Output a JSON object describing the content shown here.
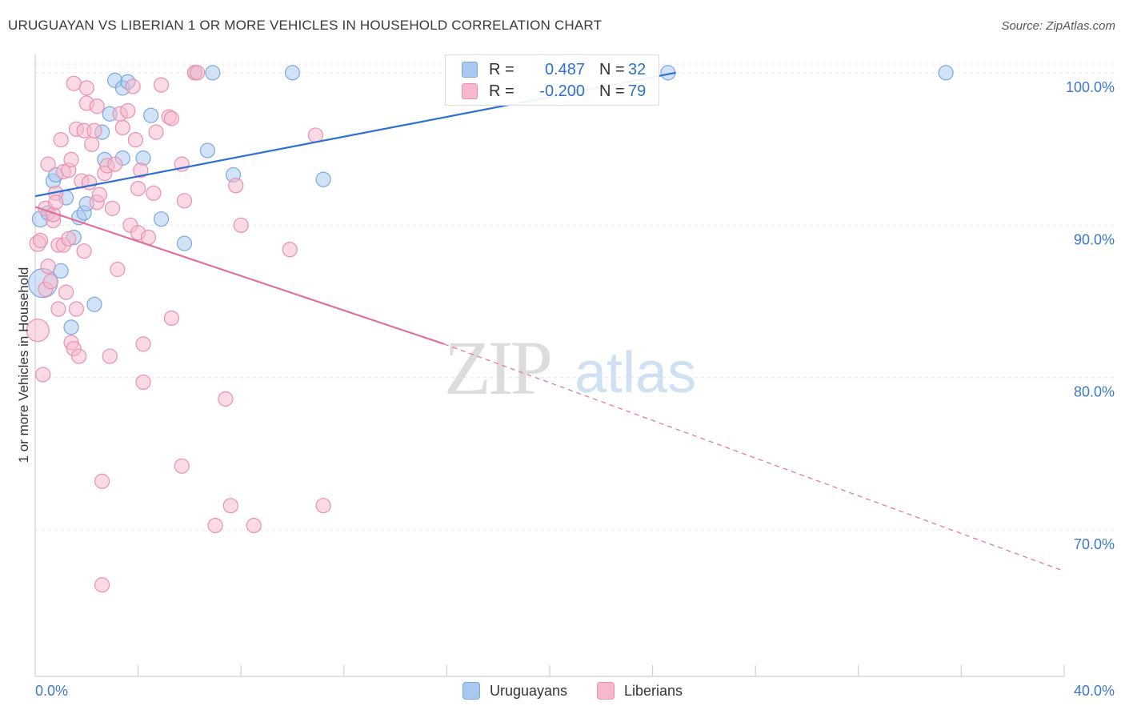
{
  "header": {
    "title": "URUGUAYAN VS LIBERIAN 1 OR MORE VEHICLES IN HOUSEHOLD CORRELATION CHART",
    "source": "Source: ZipAtlas.com"
  },
  "watermark": {
    "zip": "ZIP",
    "atlas": "atlas"
  },
  "legend": {
    "rows": [
      {
        "r_label": "R =",
        "r_value": "0.487",
        "n_label": "N =",
        "n_value": "32",
        "color": "#a8c8f0",
        "stroke": "#7ba6e0"
      },
      {
        "r_label": "R =",
        "r_value": "-0.200",
        "n_label": "N =",
        "n_value": "79",
        "color": "#f6b8cc",
        "stroke": "#e890ad"
      }
    ]
  },
  "bottom_legend": {
    "items": [
      {
        "label": "Uruguayans",
        "color": "#a8c8f0",
        "stroke": "#7ba6e0"
      },
      {
        "label": "Liberians",
        "color": "#f6b8cc",
        "stroke": "#e890ad"
      }
    ]
  },
  "chart_data": {
    "type": "scatter",
    "title": "URUGUAYAN VS LIBERIAN 1 OR MORE VEHICLES IN HOUSEHOLD CORRELATION CHART",
    "xlabel": "",
    "ylabel": "1 or more Vehicles in Household",
    "xlim": [
      0,
      40
    ],
    "ylim": [
      60.4,
      101.2
    ],
    "x_tick_labels": [
      "0.0%",
      "40.0%"
    ],
    "y_ticks": [
      {
        "value": 100,
        "label": "100.0%"
      },
      {
        "value": 90,
        "label": "90.0%"
      },
      {
        "value": 80,
        "label": "80.0%"
      },
      {
        "value": 70,
        "label": "70.0%"
      }
    ],
    "grid": true,
    "series": [
      {
        "name": "Uruguayans",
        "color": "#a8c8f0",
        "stroke": "#7ba6e0",
        "line_color": "#2f6fd0",
        "trend": {
          "x0": 0.0,
          "y0": 91.9,
          "x1": 24.9,
          "y1": 100.0,
          "dashed_to": null
        },
        "points": [
          [
            0.3,
            86.2,
            18
          ],
          [
            0.2,
            90.4,
            10
          ],
          [
            0.5,
            90.8,
            9
          ],
          [
            0.7,
            92.9,
            9
          ],
          [
            0.8,
            93.3,
            9
          ],
          [
            1.0,
            87.0,
            9
          ],
          [
            1.2,
            91.8,
            9
          ],
          [
            1.5,
            89.2,
            9
          ],
          [
            1.7,
            90.5,
            9
          ],
          [
            1.9,
            90.8,
            9
          ],
          [
            2.0,
            91.4,
            9
          ],
          [
            2.3,
            84.8,
            9
          ],
          [
            1.4,
            83.3,
            9
          ],
          [
            2.6,
            96.1,
            9
          ],
          [
            2.7,
            94.3,
            9
          ],
          [
            2.9,
            97.3,
            9
          ],
          [
            3.1,
            99.5,
            9
          ],
          [
            3.4,
            94.4,
            9
          ],
          [
            3.4,
            99.0,
            9
          ],
          [
            3.6,
            99.4,
            9
          ],
          [
            4.2,
            94.4,
            9
          ],
          [
            4.5,
            97.2,
            9
          ],
          [
            4.9,
            90.4,
            9
          ],
          [
            5.8,
            88.8,
            9
          ],
          [
            6.2,
            100.0,
            9
          ],
          [
            6.7,
            94.9,
            9
          ],
          [
            6.9,
            100.0,
            9
          ],
          [
            7.7,
            93.3,
            9
          ],
          [
            10.0,
            100.0,
            9
          ],
          [
            11.2,
            93.0,
            9
          ],
          [
            24.6,
            100.0,
            9
          ],
          [
            35.4,
            100.0,
            9
          ]
        ]
      },
      {
        "name": "Liberians",
        "color": "#f6b8cc",
        "stroke": "#e890ad",
        "line_color": "#e07098",
        "trend": {
          "x0": 0.0,
          "y0": 91.2,
          "x1": 15.9,
          "y1": 82.2,
          "dashed_to": {
            "x": 40.0,
            "y": 67.3
          }
        },
        "points": [
          [
            0.1,
            83.1,
            14
          ],
          [
            0.1,
            88.8,
            10
          ],
          [
            0.2,
            89.0,
            9
          ],
          [
            0.3,
            80.2,
            9
          ],
          [
            0.4,
            85.8,
            9
          ],
          [
            0.4,
            91.1,
            9
          ],
          [
            0.5,
            94.0,
            9
          ],
          [
            0.5,
            87.3,
            9
          ],
          [
            0.6,
            86.3,
            9
          ],
          [
            0.7,
            90.3,
            9
          ],
          [
            0.7,
            90.7,
            9
          ],
          [
            0.8,
            92.1,
            9
          ],
          [
            0.8,
            91.5,
            9
          ],
          [
            0.9,
            84.5,
            9
          ],
          [
            0.9,
            88.7,
            9
          ],
          [
            1.0,
            95.6,
            9
          ],
          [
            1.1,
            93.5,
            9
          ],
          [
            1.1,
            88.7,
            9
          ],
          [
            1.2,
            85.6,
            9
          ],
          [
            1.3,
            89.1,
            9
          ],
          [
            1.3,
            93.6,
            9
          ],
          [
            1.4,
            82.3,
            9
          ],
          [
            1.4,
            94.3,
            9
          ],
          [
            1.5,
            81.9,
            9
          ],
          [
            1.5,
            99.3,
            9
          ],
          [
            1.6,
            84.5,
            9
          ],
          [
            1.6,
            96.3,
            9
          ],
          [
            1.7,
            81.4,
            9
          ],
          [
            1.8,
            92.9,
            9
          ],
          [
            1.9,
            88.3,
            9
          ],
          [
            1.9,
            96.2,
            9
          ],
          [
            2.0,
            99.0,
            9
          ],
          [
            2.0,
            98.0,
            9
          ],
          [
            2.1,
            92.8,
            9
          ],
          [
            2.2,
            95.3,
            9
          ],
          [
            2.3,
            96.2,
            9
          ],
          [
            2.4,
            91.5,
            9
          ],
          [
            2.4,
            97.8,
            9
          ],
          [
            2.5,
            92.0,
            9
          ],
          [
            2.6,
            73.2,
            9
          ],
          [
            2.6,
            66.4,
            9
          ],
          [
            2.7,
            93.4,
            9
          ],
          [
            2.8,
            93.9,
            9
          ],
          [
            2.9,
            81.4,
            9
          ],
          [
            3.0,
            91.1,
            9
          ],
          [
            3.1,
            94.0,
            9
          ],
          [
            3.2,
            87.1,
            9
          ],
          [
            3.3,
            97.3,
            9
          ],
          [
            3.4,
            96.4,
            9
          ],
          [
            3.6,
            97.5,
            9
          ],
          [
            3.7,
            90.0,
            9
          ],
          [
            3.8,
            99.1,
            9
          ],
          [
            3.9,
            95.6,
            9
          ],
          [
            4.0,
            89.5,
            9
          ],
          [
            4.0,
            92.4,
            9
          ],
          [
            4.1,
            93.6,
            9
          ],
          [
            4.2,
            79.7,
            9
          ],
          [
            4.2,
            82.2,
            9
          ],
          [
            4.4,
            89.2,
            9
          ],
          [
            4.6,
            92.1,
            9
          ],
          [
            4.7,
            96.1,
            9
          ],
          [
            4.9,
            99.2,
            9
          ],
          [
            5.2,
            97.1,
            9
          ],
          [
            5.3,
            97.0,
            9
          ],
          [
            5.3,
            83.9,
            9
          ],
          [
            5.7,
            94.0,
            9
          ],
          [
            5.7,
            74.2,
            9
          ],
          [
            5.8,
            91.6,
            9
          ],
          [
            6.2,
            100.0,
            9
          ],
          [
            6.3,
            100.0,
            9
          ],
          [
            7.4,
            78.6,
            9
          ],
          [
            7.6,
            71.6,
            9
          ],
          [
            7.8,
            92.6,
            9
          ],
          [
            7.0,
            70.3,
            9
          ],
          [
            8.0,
            90.0,
            9
          ],
          [
            8.5,
            70.3,
            9
          ],
          [
            9.9,
            88.4,
            9
          ],
          [
            10.9,
            95.9,
            9
          ],
          [
            11.2,
            71.6,
            9
          ]
        ]
      }
    ]
  }
}
